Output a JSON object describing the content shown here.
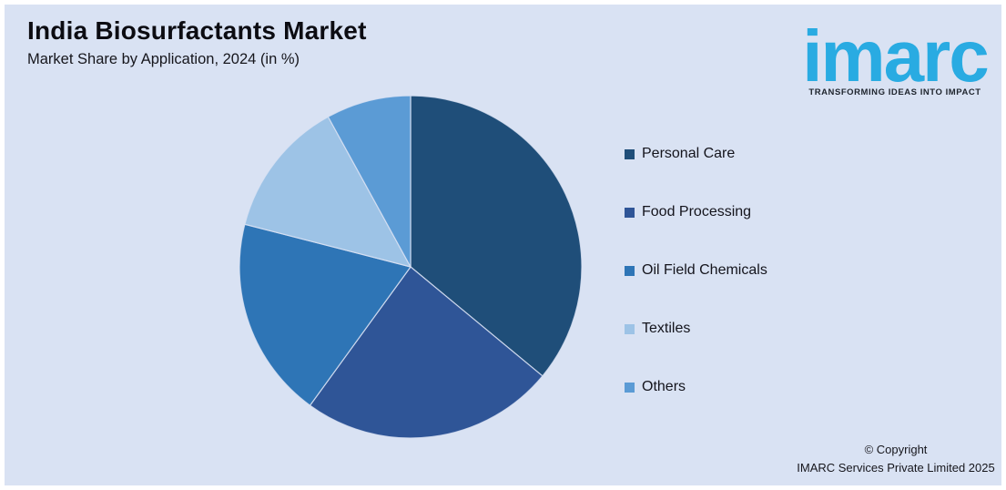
{
  "header": {
    "title": "India Biosurfactants Market",
    "subtitle": "Market Share by Application, 2024 (in %)"
  },
  "logo": {
    "wordmark": "imarc",
    "tagline": "TRANSFORMING IDEAS INTO IMPACT",
    "brand_color": "#29ABE2"
  },
  "chart_data": {
    "type": "pie",
    "title": "India Biosurfactants Market",
    "subtitle": "Market Share by Application, 2024 (in %)",
    "categories": [
      "Personal Care",
      "Food Processing",
      "Oil Field Chemicals",
      "Textiles",
      "Others"
    ],
    "values": [
      36,
      24,
      19,
      13,
      8
    ],
    "unit": "%",
    "colors": [
      "#1F4E79",
      "#2F5597",
      "#2E75B6",
      "#9DC3E6",
      "#5B9BD5"
    ],
    "start_angle_deg": 0,
    "direction": "clockwise",
    "legend_position": "right",
    "data_labels": false,
    "background": "#D9E2F3"
  },
  "legend": {
    "items": [
      {
        "label": "Personal Care",
        "color": "#1F4E79"
      },
      {
        "label": "Food Processing",
        "color": "#2F5597"
      },
      {
        "label": "Oil Field Chemicals",
        "color": "#2E75B6"
      },
      {
        "label": "Textiles",
        "color": "#9DC3E6"
      },
      {
        "label": "Others",
        "color": "#5B9BD5"
      }
    ]
  },
  "footer": {
    "copyright_line1": "© Copyright",
    "copyright_line2": "IMARC Services Private Limited 2025"
  }
}
